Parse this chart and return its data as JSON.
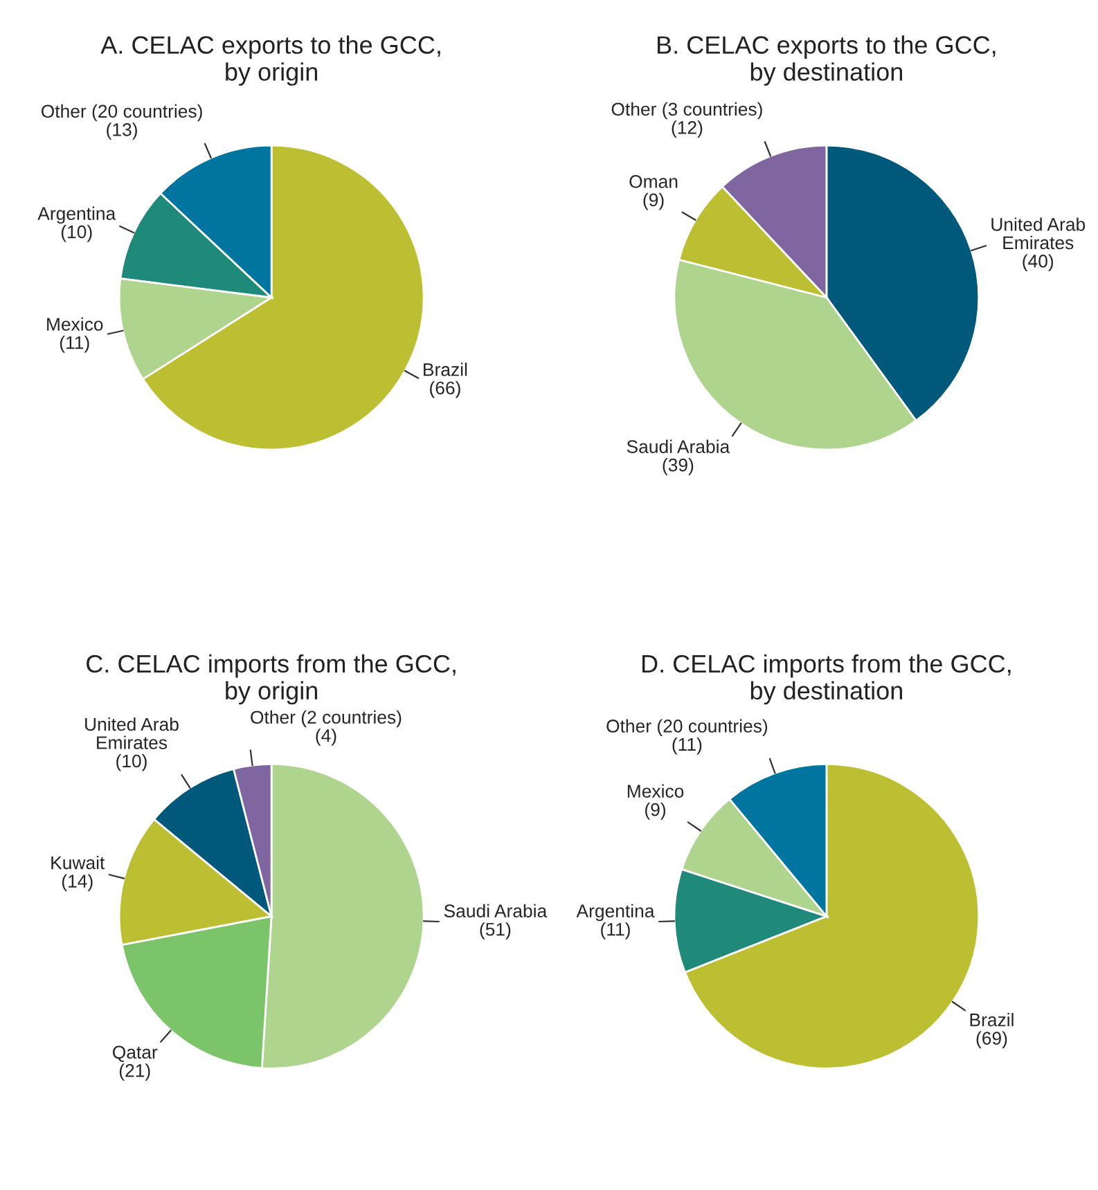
{
  "chart_data": [
    {
      "type": "pie",
      "title": "A. CELAC exports to the GCC,\nby origin",
      "categories": [
        "Brazil",
        "Mexico",
        "Argentina",
        "Other (20 countries)"
      ],
      "values": [
        66,
        11,
        10,
        13
      ],
      "colors": [
        "#bcbf32",
        "#aed48e",
        "#1f8a7a",
        "#00759f"
      ],
      "value_labels": [
        "(66)",
        "(11)",
        "(10)",
        "(13)"
      ]
    },
    {
      "type": "pie",
      "title": "B. CELAC exports to the GCC,\nby destination",
      "categories": [
        "United Arab\nEmirates",
        "Saudi Arabia",
        "Oman",
        "Other (3 countries)"
      ],
      "values": [
        40,
        39,
        9,
        12
      ],
      "colors": [
        "#00587a",
        "#aed48e",
        "#bcbf32",
        "#8066a0"
      ],
      "value_labels": [
        "(40)",
        "(39)",
        "(9)",
        "(12)"
      ]
    },
    {
      "type": "pie",
      "title": "C. CELAC imports from the GCC,\nby origin",
      "categories": [
        "Saudi Arabia",
        "Qatar",
        "Kuwait",
        "United Arab\nEmirates",
        "Other (2 countries)"
      ],
      "values": [
        51,
        21,
        14,
        10,
        4
      ],
      "colors": [
        "#aed48e",
        "#7cc46a",
        "#bcbf32",
        "#00587a",
        "#8066a0"
      ],
      "value_labels": [
        "(51)",
        "(21)",
        "(14)",
        "(10)",
        "(4)"
      ]
    },
    {
      "type": "pie",
      "title": "D. CELAC imports from the GCC,\nby destination",
      "categories": [
        "Brazil",
        "Argentina",
        "Mexico",
        "Other (20 countries)"
      ],
      "values": [
        69,
        11,
        9,
        11
      ],
      "colors": [
        "#bcbf32",
        "#1f8a7a",
        "#aed48e",
        "#00759f"
      ],
      "value_labels": [
        "(69)",
        "(11)",
        "(9)",
        "(11)"
      ]
    }
  ]
}
